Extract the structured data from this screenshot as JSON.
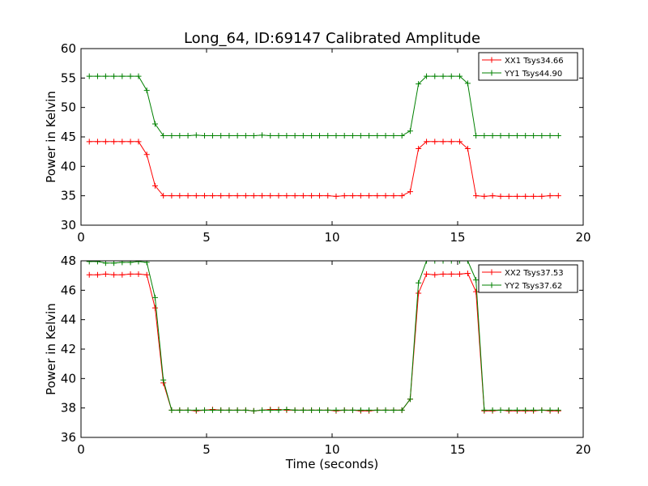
{
  "figure": {
    "title": "Long_64, ID:69147 Calibrated Amplitude"
  },
  "chart_data": [
    {
      "type": "line",
      "title": "Long_64, ID:69147 Calibrated Amplitude",
      "xlabel": "",
      "ylabel": "Power in Kelvin",
      "xlim": [
        0,
        20
      ],
      "ylim": [
        30,
        60
      ],
      "xticks": [
        "0",
        "5",
        "10",
        "15",
        "20"
      ],
      "yticks": [
        "30",
        "35",
        "40",
        "45",
        "50",
        "55",
        "60"
      ],
      "grid": false,
      "legend_position": "top-right",
      "x": [
        0.33,
        0.66,
        0.98,
        1.31,
        1.64,
        1.97,
        2.29,
        2.62,
        2.95,
        3.28,
        3.61,
        3.93,
        4.26,
        4.59,
        4.92,
        5.24,
        5.57,
        5.9,
        6.23,
        6.56,
        6.88,
        7.21,
        7.54,
        7.87,
        8.19,
        8.52,
        8.85,
        9.18,
        9.5,
        9.83,
        10.16,
        10.49,
        10.82,
        11.14,
        11.47,
        11.8,
        12.13,
        12.45,
        12.78,
        13.11,
        13.44,
        13.76,
        14.09,
        14.42,
        14.75,
        15.08,
        15.4,
        15.73,
        16.06,
        16.39,
        16.71,
        17.04,
        17.37,
        17.7,
        18.02,
        18.35,
        18.68,
        19.01
      ],
      "series": [
        {
          "name": "XX1 Tsys34.66",
          "color": "#ff0000",
          "values": [
            44.2,
            44.2,
            44.2,
            44.2,
            44.2,
            44.2,
            44.2,
            42.0,
            36.7,
            35.0,
            35.0,
            35.0,
            35.0,
            35.0,
            35.0,
            35.0,
            35.0,
            35.0,
            35.0,
            35.0,
            35.0,
            35.0,
            35.0,
            35.0,
            35.0,
            35.0,
            35.0,
            35.0,
            35.0,
            35.0,
            34.9,
            35.0,
            35.0,
            35.0,
            35.0,
            35.0,
            35.0,
            35.0,
            35.0,
            35.7,
            43.0,
            44.2,
            44.2,
            44.2,
            44.2,
            44.2,
            43.0,
            35.0,
            34.9,
            35.0,
            34.9,
            34.9,
            34.9,
            34.9,
            34.9,
            34.9,
            35.0,
            35.0
          ]
        },
        {
          "name": "YY1 Tsys44.90",
          "color": "#008000",
          "values": [
            55.3,
            55.3,
            55.3,
            55.3,
            55.3,
            55.3,
            55.3,
            52.9,
            47.2,
            45.2,
            45.2,
            45.2,
            45.2,
            45.3,
            45.2,
            45.2,
            45.2,
            45.2,
            45.2,
            45.2,
            45.2,
            45.3,
            45.2,
            45.2,
            45.2,
            45.2,
            45.2,
            45.2,
            45.2,
            45.2,
            45.2,
            45.2,
            45.2,
            45.2,
            45.2,
            45.2,
            45.2,
            45.2,
            45.2,
            46.0,
            54.0,
            55.3,
            55.3,
            55.3,
            55.3,
            55.3,
            54.1,
            45.2,
            45.2,
            45.2,
            45.2,
            45.2,
            45.2,
            45.2,
            45.2,
            45.2,
            45.2,
            45.2
          ]
        }
      ]
    },
    {
      "type": "line",
      "title": "",
      "xlabel": "Time (seconds)",
      "ylabel": "Power in Kelvin",
      "xlim": [
        0,
        20
      ],
      "ylim": [
        36,
        48
      ],
      "xticks": [
        "0",
        "5",
        "10",
        "15",
        "20"
      ],
      "yticks": [
        "36",
        "38",
        "40",
        "42",
        "44",
        "46",
        "48"
      ],
      "grid": false,
      "legend_position": "top-right",
      "x": [
        0.33,
        0.66,
        0.98,
        1.31,
        1.64,
        1.97,
        2.29,
        2.62,
        2.95,
        3.28,
        3.61,
        3.93,
        4.26,
        4.59,
        4.92,
        5.24,
        5.57,
        5.9,
        6.23,
        6.56,
        6.88,
        7.21,
        7.54,
        7.87,
        8.19,
        8.52,
        8.85,
        9.18,
        9.5,
        9.83,
        10.16,
        10.49,
        10.82,
        11.14,
        11.47,
        11.8,
        12.13,
        12.45,
        12.78,
        13.11,
        13.44,
        13.76,
        14.09,
        14.42,
        14.75,
        15.08,
        15.4,
        15.73,
        16.06,
        16.39,
        16.71,
        17.04,
        17.37,
        17.7,
        18.02,
        18.35,
        18.68,
        19.01
      ],
      "series": [
        {
          "name": "XX2 Tsys37.53",
          "color": "#ff0000",
          "values": [
            47.05,
            47.05,
            47.1,
            47.05,
            47.05,
            47.1,
            47.1,
            47.05,
            44.8,
            39.7,
            37.85,
            37.85,
            37.85,
            37.8,
            37.85,
            37.9,
            37.85,
            37.85,
            37.85,
            37.85,
            37.8,
            37.85,
            37.9,
            37.9,
            37.85,
            37.85,
            37.85,
            37.85,
            37.85,
            37.85,
            37.8,
            37.85,
            37.85,
            37.8,
            37.8,
            37.85,
            37.85,
            37.85,
            37.85,
            38.6,
            45.8,
            47.1,
            47.05,
            47.1,
            47.1,
            47.1,
            47.15,
            45.9,
            37.8,
            37.8,
            37.85,
            37.8,
            37.8,
            37.8,
            37.8,
            37.85,
            37.8,
            37.8
          ]
        },
        {
          "name": "YY2 Tsys37.62",
          "color": "#008000",
          "values": [
            47.95,
            47.95,
            47.85,
            47.85,
            47.9,
            47.9,
            47.95,
            47.9,
            45.5,
            39.9,
            37.85,
            37.85,
            37.85,
            37.85,
            37.85,
            37.85,
            37.85,
            37.85,
            37.85,
            37.85,
            37.8,
            37.85,
            37.85,
            37.85,
            37.9,
            37.85,
            37.85,
            37.85,
            37.85,
            37.85,
            37.85,
            37.85,
            37.85,
            37.85,
            37.85,
            37.85,
            37.85,
            37.85,
            37.85,
            38.6,
            46.5,
            48.0,
            48.0,
            48.0,
            48.0,
            48.0,
            48.0,
            46.7,
            37.85,
            37.85,
            37.85,
            37.85,
            37.85,
            37.85,
            37.85,
            37.85,
            37.85,
            37.85
          ]
        }
      ]
    }
  ]
}
